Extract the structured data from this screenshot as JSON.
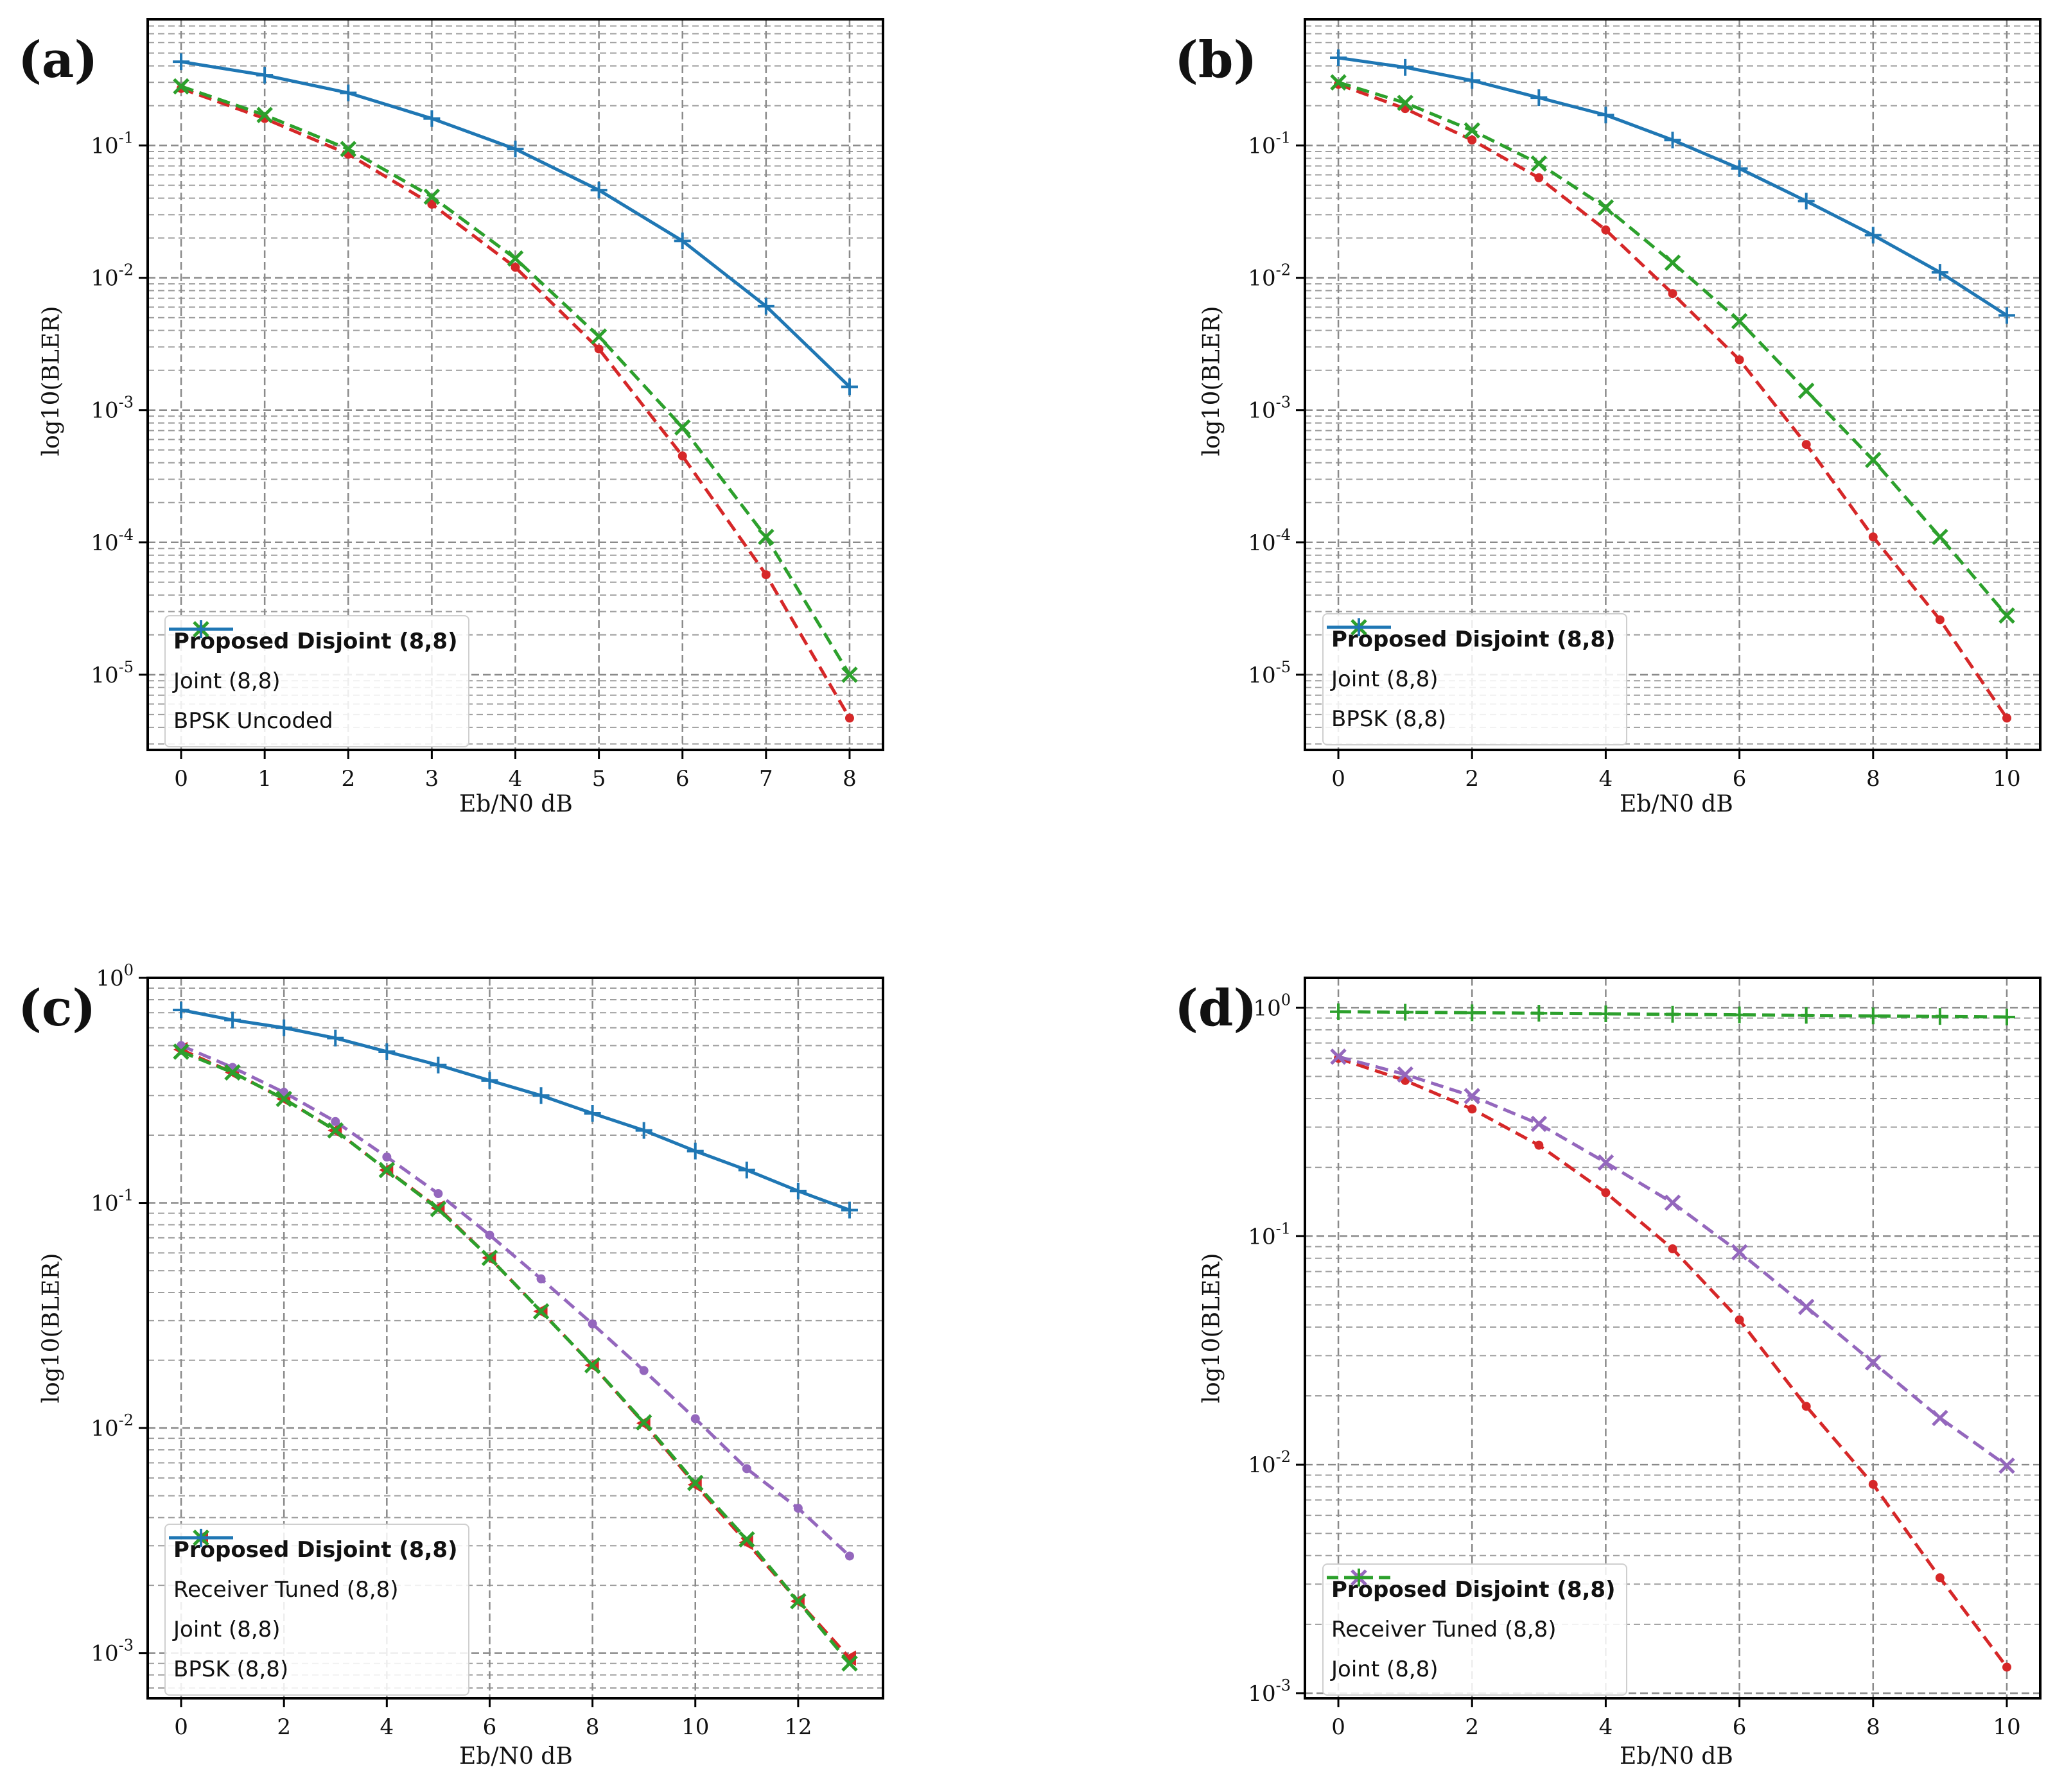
{
  "figure": {
    "panels": [
      {
        "tag": "(a)",
        "xlabel": "Eb/N0 dB",
        "ylabel": "log10(BLER)",
        "legend": [
          "Proposed Disjoint (8,8)",
          "Joint (8,8)",
          "BPSK Uncoded"
        ]
      },
      {
        "tag": "(b)",
        "xlabel": "Eb/N0 dB",
        "ylabel": "log10(BLER)",
        "legend": [
          "Proposed Disjoint (8,8)",
          "Joint (8,8)",
          "BPSK (8,8)"
        ]
      },
      {
        "tag": "(c)",
        "xlabel": "Eb/N0 dB",
        "ylabel": "log10(BLER)",
        "legend": [
          "Proposed Disjoint (8,8)",
          "Receiver Tuned (8,8)",
          "Joint (8,8)",
          "BPSK (8,8)"
        ]
      },
      {
        "tag": "(d)",
        "xlabel": "Eb/N0 dB",
        "ylabel": "log10(BLER)",
        "legend": [
          "Proposed Disjoint (8,8)",
          "Receiver Tuned (8,8)",
          "Joint (8,8)"
        ]
      }
    ]
  },
  "colors": {
    "red": "#d62728",
    "green": "#2ca02c",
    "blue": "#1f77b4",
    "purple": "#9467bd"
  },
  "chart_data": [
    {
      "type": "line",
      "panel": "(a)",
      "xlabel": "Eb/N0 dB",
      "ylabel": "log10(BLER)",
      "yscale": "log",
      "xlim": [
        -0.4,
        8.4
      ],
      "ylim": [
        2.7e-06,
        0.9
      ],
      "xticks": [
        0,
        1,
        2,
        3,
        4,
        5,
        6,
        7,
        8
      ],
      "ytick_exponents": [
        -1,
        -2,
        -3,
        -4,
        -5
      ],
      "series": [
        {
          "name": "Proposed Disjoint (8,8)",
          "color": "#d62728",
          "dash": true,
          "marker": "dot",
          "bold": true,
          "x": [
            0,
            1,
            2,
            3,
            4,
            5,
            6,
            7,
            8
          ],
          "y": [
            0.27,
            0.16,
            0.086,
            0.036,
            0.012,
            0.0029,
            0.00045,
            5.7e-05,
            4.7e-06
          ]
        },
        {
          "name": "Joint (8,8)",
          "color": "#2ca02c",
          "dash": true,
          "marker": "x",
          "x": [
            0,
            1,
            2,
            3,
            4,
            5,
            6,
            7,
            8
          ],
          "y": [
            0.28,
            0.17,
            0.094,
            0.041,
            0.014,
            0.0036,
            0.00074,
            0.00011,
            1e-05
          ]
        },
        {
          "name": "BPSK Uncoded",
          "color": "#1f77b4",
          "dash": false,
          "marker": "plus",
          "x": [
            0,
            1,
            2,
            3,
            4,
            5,
            6,
            7,
            8
          ],
          "y": [
            0.43,
            0.34,
            0.25,
            0.16,
            0.094,
            0.046,
            0.019,
            0.0061,
            0.0015
          ]
        }
      ]
    },
    {
      "type": "line",
      "panel": "(b)",
      "xlabel": "Eb/N0 dB",
      "ylabel": "log10(BLER)",
      "yscale": "log",
      "xlim": [
        -0.5,
        10.5
      ],
      "ylim": [
        2.7e-06,
        0.9
      ],
      "xticks": [
        0,
        2,
        4,
        6,
        8,
        10
      ],
      "ytick_exponents": [
        -1,
        -2,
        -3,
        -4,
        -5
      ],
      "series": [
        {
          "name": "Proposed Disjoint (8,8)",
          "color": "#d62728",
          "dash": true,
          "marker": "dot",
          "bold": true,
          "x": [
            0,
            1,
            2,
            3,
            4,
            5,
            6,
            7,
            8,
            9,
            10
          ],
          "y": [
            0.29,
            0.19,
            0.11,
            0.057,
            0.023,
            0.0076,
            0.0024,
            0.00055,
            0.00011,
            2.6e-05,
            4.7e-06
          ]
        },
        {
          "name": "Joint (8,8)",
          "color": "#2ca02c",
          "dash": true,
          "marker": "x",
          "x": [
            0,
            1,
            2,
            3,
            4,
            5,
            6,
            7,
            8,
            9,
            10
          ],
          "y": [
            0.3,
            0.21,
            0.13,
            0.073,
            0.034,
            0.013,
            0.0047,
            0.0014,
            0.00042,
            0.00011,
            2.8e-05
          ]
        },
        {
          "name": "BPSK (8,8)",
          "color": "#1f77b4",
          "dash": false,
          "marker": "plus",
          "x": [
            0,
            1,
            2,
            3,
            4,
            5,
            6,
            7,
            8,
            9,
            10
          ],
          "y": [
            0.46,
            0.39,
            0.31,
            0.23,
            0.17,
            0.11,
            0.067,
            0.038,
            0.021,
            0.011,
            0.0052
          ]
        }
      ]
    },
    {
      "type": "line",
      "panel": "(c)",
      "xlabel": "Eb/N0 dB",
      "ylabel": "log10(BLER)",
      "yscale": "log",
      "xlim": [
        -0.65,
        13.65
      ],
      "ylim": [
        0.00063,
        1.0
      ],
      "xticks": [
        0,
        2,
        4,
        6,
        8,
        10,
        12
      ],
      "ytick_exponents": [
        0,
        -1,
        -2,
        -3
      ],
      "series": [
        {
          "name": "Proposed Disjoint (8,8)",
          "color": "#d62728",
          "dash": true,
          "marker": "triangle-left",
          "bold": true,
          "x": [
            0,
            1,
            2,
            3,
            4,
            5,
            6,
            7,
            8,
            9,
            10,
            11,
            12,
            13
          ],
          "y": [
            0.48,
            0.38,
            0.29,
            0.21,
            0.14,
            0.095,
            0.057,
            0.033,
            0.019,
            0.0105,
            0.0056,
            0.0031,
            0.0017,
            0.00095
          ]
        },
        {
          "name": "Receiver Tuned (8,8)",
          "color": "#9467bd",
          "dash": true,
          "marker": "dot",
          "x": [
            0,
            1,
            2,
            3,
            4,
            5,
            6,
            7,
            8,
            9,
            10,
            11,
            12,
            13
          ],
          "y": [
            0.5,
            0.4,
            0.31,
            0.23,
            0.16,
            0.11,
            0.072,
            0.046,
            0.029,
            0.018,
            0.011,
            0.0066,
            0.0044,
            0.0027
          ]
        },
        {
          "name": "Joint (8,8)",
          "color": "#2ca02c",
          "dash": true,
          "marker": "x",
          "x": [
            0,
            1,
            2,
            3,
            4,
            5,
            6,
            7,
            8,
            9,
            10,
            11,
            12,
            13
          ],
          "y": [
            0.47,
            0.38,
            0.29,
            0.21,
            0.14,
            0.094,
            0.057,
            0.033,
            0.019,
            0.0106,
            0.0057,
            0.0032,
            0.0017,
            0.0009
          ]
        },
        {
          "name": "BPSK (8,8)",
          "color": "#1f77b4",
          "dash": false,
          "marker": "plus",
          "x": [
            0,
            1,
            2,
            3,
            4,
            5,
            6,
            7,
            8,
            9,
            10,
            11,
            12,
            13
          ],
          "y": [
            0.72,
            0.65,
            0.6,
            0.54,
            0.47,
            0.41,
            0.35,
            0.3,
            0.25,
            0.21,
            0.17,
            0.14,
            0.113,
            0.093
          ]
        }
      ]
    },
    {
      "type": "line",
      "panel": "(d)",
      "xlabel": "Eb/N0 dB",
      "ylabel": "log10(BLER)",
      "yscale": "log",
      "xlim": [
        -0.5,
        10.5
      ],
      "ylim": [
        0.00095,
        1.35
      ],
      "xticks": [
        0,
        2,
        4,
        6,
        8,
        10
      ],
      "ytick_exponents": [
        0,
        -1,
        -2,
        -3
      ],
      "series": [
        {
          "name": "Proposed Disjoint (8,8)",
          "color": "#d62728",
          "dash": true,
          "marker": "dot",
          "bold": true,
          "x": [
            0,
            1,
            2,
            3,
            4,
            5,
            6,
            7,
            8,
            9,
            10
          ],
          "y": [
            0.6,
            0.48,
            0.36,
            0.25,
            0.155,
            0.088,
            0.043,
            0.018,
            0.0082,
            0.0032,
            0.0013
          ]
        },
        {
          "name": "Receiver Tuned (8,8)",
          "color": "#9467bd",
          "dash": true,
          "marker": "x",
          "x": [
            0,
            1,
            2,
            3,
            4,
            5,
            6,
            7,
            8,
            9,
            10
          ],
          "y": [
            0.61,
            0.51,
            0.41,
            0.31,
            0.21,
            0.14,
            0.085,
            0.049,
            0.028,
            0.016,
            0.0099
          ]
        },
        {
          "name": "Joint (8,8)",
          "color": "#2ca02c",
          "dash": true,
          "marker": "plus",
          "x": [
            0,
            1,
            2,
            3,
            4,
            5,
            6,
            7,
            8,
            9,
            10
          ],
          "y": [
            0.96,
            0.955,
            0.95,
            0.945,
            0.94,
            0.935,
            0.93,
            0.925,
            0.92,
            0.915,
            0.91
          ]
        }
      ]
    }
  ]
}
